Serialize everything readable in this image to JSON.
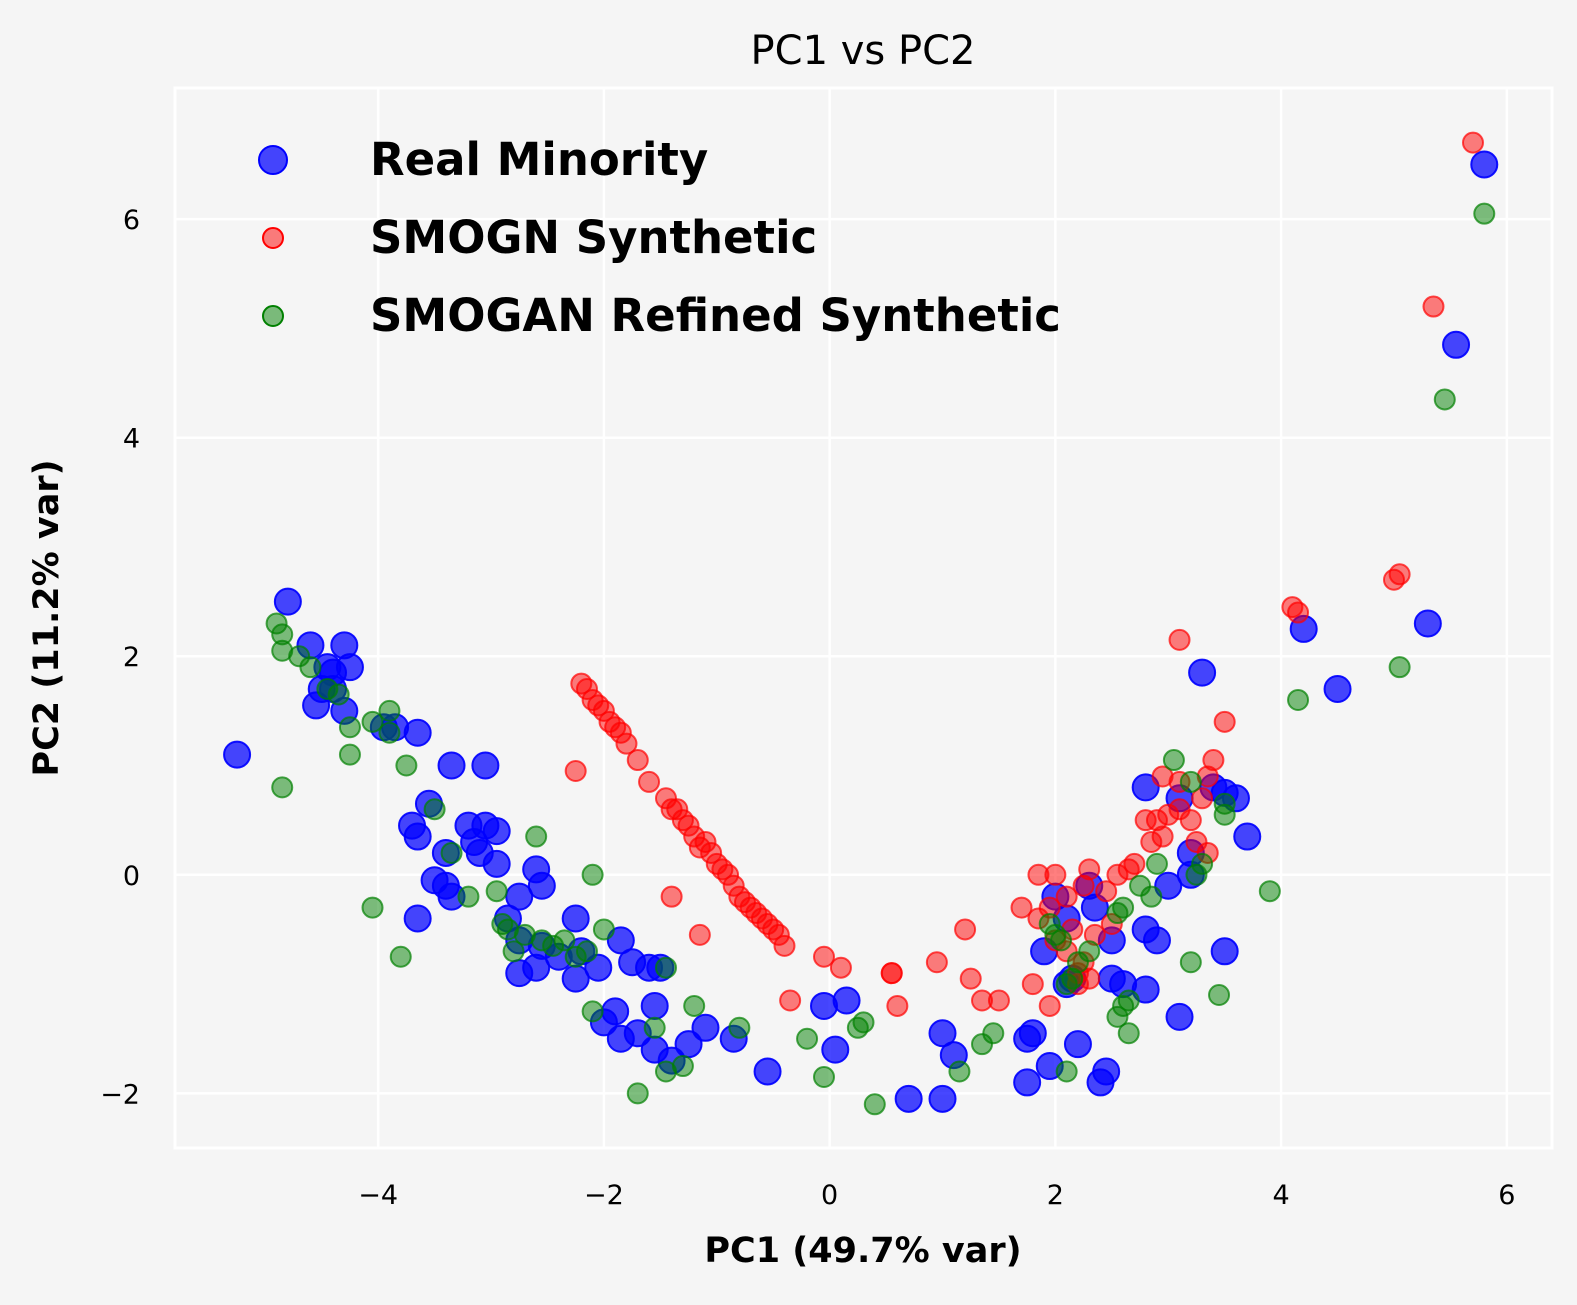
{
  "chart_data": {
    "type": "scatter",
    "title": "PC1 vs PC2",
    "xlabel": "PC1 (49.7% var)",
    "ylabel": "PC2 (11.2% var)",
    "xlim": [
      -5.8,
      6.4
    ],
    "ylim": [
      -2.5,
      7.2
    ],
    "xticks": [
      -4,
      -2,
      0,
      2,
      4,
      6
    ],
    "yticks": [
      -2,
      0,
      2,
      4,
      6
    ],
    "xtick_labels": [
      "−4",
      "−2",
      "0",
      "2",
      "4",
      "6"
    ],
    "ytick_labels": [
      "−2",
      "0",
      "2",
      "4",
      "6"
    ],
    "grid": true,
    "legend_position": "top-left",
    "series": [
      {
        "name": "Real Minority",
        "color": "#0000ff",
        "points": [
          [
            5.8,
            6.5
          ],
          [
            5.55,
            4.85
          ],
          [
            5.3,
            2.3
          ],
          [
            4.2,
            2.25
          ],
          [
            4.5,
            1.7
          ],
          [
            3.3,
            1.85
          ],
          [
            3.7,
            0.35
          ],
          [
            3.6,
            0.7
          ],
          [
            3.5,
            0.75
          ],
          [
            3.4,
            0.8
          ],
          [
            3.5,
            -0.7
          ],
          [
            3.1,
            -1.3
          ],
          [
            3.2,
            0.2
          ],
          [
            3.1,
            0.7
          ],
          [
            3.0,
            -0.1
          ],
          [
            3.2,
            0.0
          ],
          [
            2.8,
            0.8
          ],
          [
            2.9,
            -0.6
          ],
          [
            2.8,
            -0.5
          ],
          [
            2.8,
            -1.05
          ],
          [
            2.6,
            -1.0
          ],
          [
            2.5,
            -0.95
          ],
          [
            2.4,
            -1.9
          ],
          [
            2.45,
            -1.8
          ],
          [
            2.2,
            -1.55
          ],
          [
            1.8,
            -1.45
          ],
          [
            1.75,
            -1.5
          ],
          [
            1.75,
            -1.9
          ],
          [
            1.95,
            -1.75
          ],
          [
            2.1,
            -1.0
          ],
          [
            2.15,
            -0.95
          ],
          [
            2.3,
            -0.1
          ],
          [
            2.35,
            -0.3
          ],
          [
            2.5,
            -0.6
          ],
          [
            1.9,
            -0.7
          ],
          [
            2.0,
            -0.2
          ],
          [
            2.1,
            -0.4
          ],
          [
            1.0,
            -1.45
          ],
          [
            1.1,
            -1.65
          ],
          [
            1.0,
            -2.05
          ],
          [
            0.7,
            -2.05
          ],
          [
            0.15,
            -1.15
          ],
          [
            0.05,
            -1.6
          ],
          [
            -0.05,
            -1.2
          ],
          [
            -0.55,
            -1.8
          ],
          [
            -0.85,
            -1.5
          ],
          [
            -1.1,
            -1.4
          ],
          [
            -1.25,
            -1.55
          ],
          [
            -1.4,
            -1.7
          ],
          [
            -1.55,
            -1.6
          ],
          [
            -1.55,
            -1.2
          ],
          [
            -1.7,
            -1.45
          ],
          [
            -1.85,
            -1.5
          ],
          [
            -1.9,
            -1.25
          ],
          [
            -2.0,
            -1.35
          ],
          [
            -1.6,
            -0.85
          ],
          [
            -1.5,
            -0.85
          ],
          [
            -1.75,
            -0.8
          ],
          [
            -1.85,
            -0.6
          ],
          [
            -2.05,
            -0.85
          ],
          [
            -2.2,
            -0.7
          ],
          [
            -2.25,
            -0.4
          ],
          [
            -2.25,
            -0.95
          ],
          [
            -2.4,
            -0.75
          ],
          [
            -2.55,
            -0.65
          ],
          [
            -2.6,
            -0.85
          ],
          [
            -2.75,
            -0.9
          ],
          [
            -2.75,
            -0.6
          ],
          [
            -2.55,
            -0.1
          ],
          [
            -2.6,
            0.05
          ],
          [
            -2.75,
            -0.2
          ],
          [
            -2.85,
            -0.4
          ],
          [
            -2.95,
            0.1
          ],
          [
            -2.95,
            0.4
          ],
          [
            -3.05,
            0.45
          ],
          [
            -3.15,
            0.3
          ],
          [
            -3.2,
            0.45
          ],
          [
            -3.1,
            0.2
          ],
          [
            -3.4,
            0.2
          ],
          [
            -3.35,
            -0.2
          ],
          [
            -3.5,
            -0.05
          ],
          [
            -3.4,
            -0.1
          ],
          [
            -3.65,
            -0.4
          ],
          [
            -3.65,
            0.35
          ],
          [
            -3.7,
            0.45
          ],
          [
            -3.55,
            0.65
          ],
          [
            -3.35,
            1.0
          ],
          [
            -3.05,
            1.0
          ],
          [
            -3.65,
            1.3
          ],
          [
            -3.85,
            1.35
          ],
          [
            -3.95,
            1.35
          ],
          [
            -4.3,
            2.1
          ],
          [
            -4.25,
            1.9
          ],
          [
            -4.3,
            1.5
          ],
          [
            -4.4,
            1.7
          ],
          [
            -4.45,
            1.9
          ],
          [
            -4.5,
            1.7
          ],
          [
            -4.55,
            1.55
          ],
          [
            -4.6,
            2.1
          ],
          [
            -4.8,
            2.5
          ],
          [
            -4.4,
            1.85
          ],
          [
            -5.25,
            1.1
          ]
        ]
      },
      {
        "name": "SMOGN Synthetic",
        "color": "#ff0000",
        "points": [
          [
            5.7,
            6.7
          ],
          [
            5.35,
            5.2
          ],
          [
            5.05,
            2.75
          ],
          [
            5.0,
            2.7
          ],
          [
            4.1,
            2.45
          ],
          [
            4.15,
            2.4
          ],
          [
            3.1,
            2.15
          ],
          [
            3.5,
            1.4
          ],
          [
            3.4,
            1.05
          ],
          [
            3.35,
            0.9
          ],
          [
            2.95,
            0.9
          ],
          [
            3.1,
            0.85
          ],
          [
            3.3,
            0.7
          ],
          [
            3.1,
            0.6
          ],
          [
            3.0,
            0.55
          ],
          [
            2.9,
            0.5
          ],
          [
            2.8,
            0.5
          ],
          [
            3.2,
            0.5
          ],
          [
            2.95,
            0.35
          ],
          [
            3.35,
            0.2
          ],
          [
            2.85,
            0.3
          ],
          [
            3.25,
            0.3
          ],
          [
            2.7,
            0.1
          ],
          [
            2.65,
            0.05
          ],
          [
            2.55,
            0.0
          ],
          [
            2.45,
            -0.15
          ],
          [
            2.3,
            0.05
          ],
          [
            2.25,
            -0.1
          ],
          [
            2.1,
            -0.2
          ],
          [
            2.0,
            0.0
          ],
          [
            1.85,
            0.0
          ],
          [
            1.95,
            -0.3
          ],
          [
            1.7,
            -0.3
          ],
          [
            1.85,
            -0.4
          ],
          [
            2.15,
            -0.5
          ],
          [
            2.35,
            -0.55
          ],
          [
            2.5,
            -0.45
          ],
          [
            2.0,
            -0.6
          ],
          [
            2.1,
            -0.7
          ],
          [
            2.25,
            -0.8
          ],
          [
            2.2,
            -0.9
          ],
          [
            2.3,
            -0.95
          ],
          [
            2.2,
            -1.0
          ],
          [
            1.8,
            -1.0
          ],
          [
            1.95,
            -1.2
          ],
          [
            1.2,
            -0.5
          ],
          [
            1.25,
            -0.95
          ],
          [
            1.35,
            -1.15
          ],
          [
            1.5,
            -1.15
          ],
          [
            0.95,
            -0.8
          ],
          [
            0.55,
            -0.9
          ],
          [
            0.6,
            -1.2
          ],
          [
            0.1,
            -0.85
          ],
          [
            -0.05,
            -0.75
          ],
          [
            -0.35,
            -1.15
          ],
          [
            -0.4,
            -0.65
          ],
          [
            -0.45,
            -0.55
          ],
          [
            -0.5,
            -0.5
          ],
          [
            -0.55,
            -0.45
          ],
          [
            -0.6,
            -0.4
          ],
          [
            -0.65,
            -0.35
          ],
          [
            -0.7,
            -0.3
          ],
          [
            -0.75,
            -0.25
          ],
          [
            -0.8,
            -0.2
          ],
          [
            -0.85,
            -0.1
          ],
          [
            -0.9,
            0.0
          ],
          [
            -0.95,
            0.05
          ],
          [
            -1.0,
            0.1
          ],
          [
            -1.05,
            0.2
          ],
          [
            -1.1,
            0.3
          ],
          [
            -1.15,
            0.25
          ],
          [
            -1.2,
            0.35
          ],
          [
            -1.25,
            0.45
          ],
          [
            -1.3,
            0.5
          ],
          [
            -1.35,
            0.6
          ],
          [
            -1.4,
            0.6
          ],
          [
            -1.45,
            0.7
          ],
          [
            -1.6,
            0.85
          ],
          [
            -1.7,
            1.05
          ],
          [
            -1.8,
            1.2
          ],
          [
            -1.85,
            1.3
          ],
          [
            -1.9,
            1.35
          ],
          [
            -1.95,
            1.4
          ],
          [
            -2.0,
            1.5
          ],
          [
            -2.05,
            1.55
          ],
          [
            -2.1,
            1.6
          ],
          [
            -2.15,
            1.7
          ],
          [
            -2.2,
            1.75
          ],
          [
            -2.25,
            0.95
          ],
          [
            -1.4,
            -0.2
          ],
          [
            -1.15,
            -0.55
          ],
          [
            0.55,
            -0.9
          ]
        ]
      },
      {
        "name": "SMOGAN Refined Synthetic",
        "color": "#008000",
        "points": [
          [
            5.8,
            6.05
          ],
          [
            5.45,
            4.35
          ],
          [
            5.05,
            1.9
          ],
          [
            4.15,
            1.6
          ],
          [
            3.9,
            -0.15
          ],
          [
            3.05,
            1.05
          ],
          [
            3.2,
            0.85
          ],
          [
            3.5,
            0.65
          ],
          [
            3.5,
            0.55
          ],
          [
            3.3,
            0.1
          ],
          [
            3.25,
            0.0
          ],
          [
            2.9,
            0.1
          ],
          [
            2.85,
            -0.2
          ],
          [
            2.75,
            -0.1
          ],
          [
            2.6,
            -0.3
          ],
          [
            2.55,
            -0.35
          ],
          [
            3.2,
            -0.8
          ],
          [
            3.45,
            -1.1
          ],
          [
            2.65,
            -1.15
          ],
          [
            2.6,
            -1.2
          ],
          [
            2.65,
            -1.45
          ],
          [
            2.55,
            -1.3
          ],
          [
            2.3,
            -0.7
          ],
          [
            2.2,
            -0.8
          ],
          [
            2.15,
            -0.95
          ],
          [
            2.1,
            -1.0
          ],
          [
            2.05,
            -0.6
          ],
          [
            1.95,
            -0.45
          ],
          [
            2.0,
            -0.55
          ],
          [
            2.1,
            -1.8
          ],
          [
            1.45,
            -1.45
          ],
          [
            1.35,
            -1.55
          ],
          [
            1.15,
            -1.8
          ],
          [
            0.3,
            -1.35
          ],
          [
            0.25,
            -1.4
          ],
          [
            0.4,
            -2.1
          ],
          [
            -0.05,
            -1.85
          ],
          [
            -0.2,
            -1.5
          ],
          [
            -0.8,
            -1.4
          ],
          [
            -1.2,
            -1.2
          ],
          [
            -1.3,
            -1.75
          ],
          [
            -1.45,
            -1.8
          ],
          [
            -1.55,
            -1.4
          ],
          [
            -1.7,
            -2.0
          ],
          [
            -2.1,
            -1.25
          ],
          [
            -1.45,
            -0.85
          ],
          [
            -2.0,
            -0.5
          ],
          [
            -2.15,
            -0.7
          ],
          [
            -2.25,
            -0.75
          ],
          [
            -2.35,
            -0.6
          ],
          [
            -2.45,
            -0.65
          ],
          [
            -2.55,
            -0.6
          ],
          [
            -2.7,
            -0.55
          ],
          [
            -2.8,
            -0.7
          ],
          [
            -2.85,
            -0.5
          ],
          [
            -2.9,
            -0.45
          ],
          [
            -2.95,
            -0.15
          ],
          [
            -3.2,
            -0.2
          ],
          [
            -2.6,
            0.35
          ],
          [
            -3.35,
            0.2
          ],
          [
            -2.1,
            0.0
          ],
          [
            -4.05,
            -0.3
          ],
          [
            -3.8,
            -0.75
          ],
          [
            -3.75,
            1.0
          ],
          [
            -3.5,
            0.6
          ],
          [
            -3.9,
            1.3
          ],
          [
            -3.9,
            1.5
          ],
          [
            -4.05,
            1.4
          ],
          [
            -4.25,
            1.1
          ],
          [
            -4.25,
            1.35
          ],
          [
            -4.35,
            1.65
          ],
          [
            -4.45,
            1.7
          ],
          [
            -4.6,
            1.9
          ],
          [
            -4.7,
            2.0
          ],
          [
            -4.85,
            2.05
          ],
          [
            -4.9,
            2.3
          ],
          [
            -4.85,
            2.2
          ],
          [
            -4.85,
            0.8
          ]
        ]
      }
    ]
  }
}
